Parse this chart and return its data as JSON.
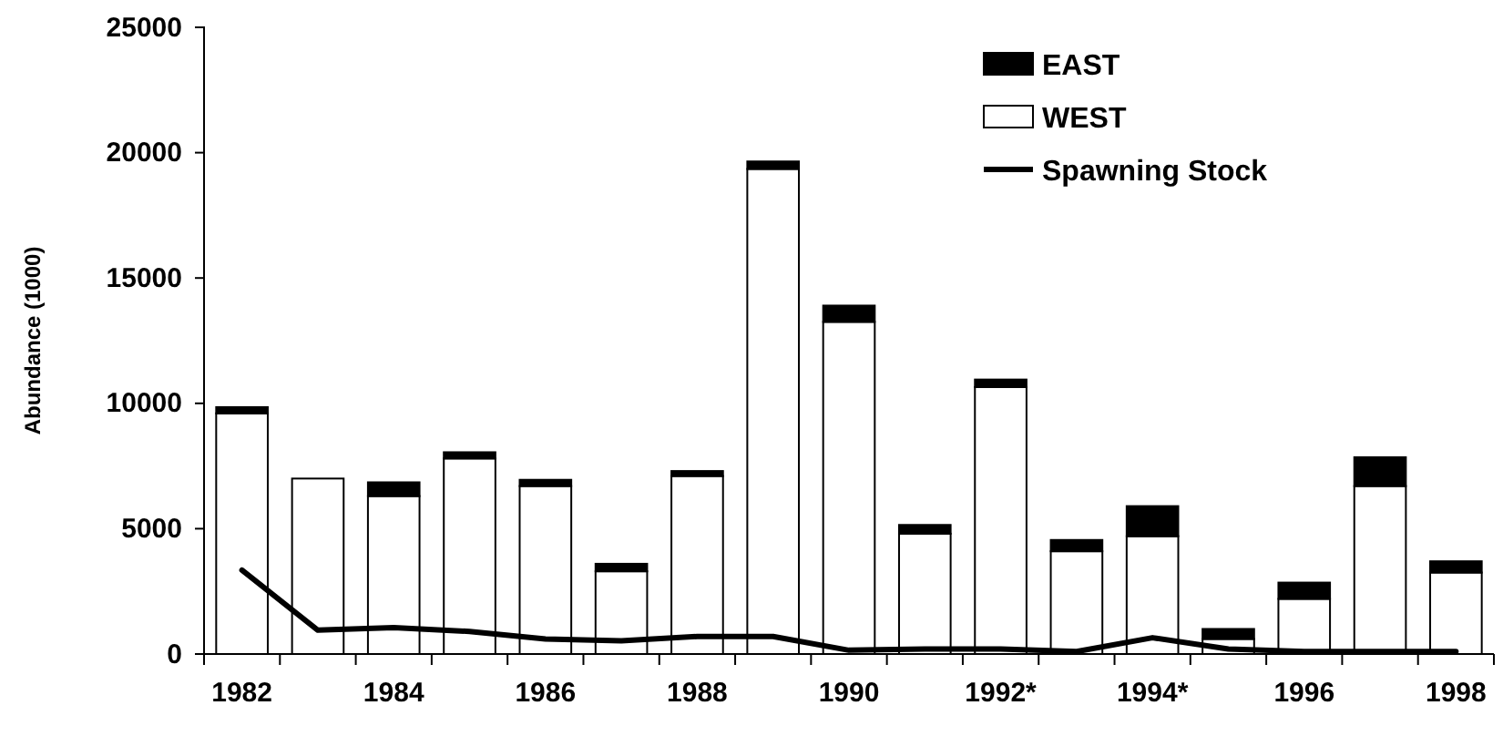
{
  "chart_data": {
    "type": "bar",
    "stacked": true,
    "ylabel": "Abundance (1000)",
    "categories": [
      "1982",
      null,
      "1984",
      null,
      "1986",
      null,
      "1988",
      null,
      "1990",
      null,
      "1992*",
      null,
      "1994*",
      null,
      "1996",
      null,
      "1998"
    ],
    "series": [
      {
        "name": "WEST",
        "color": "#ffffff",
        "values": [
          9600,
          7000,
          6300,
          7800,
          6700,
          3300,
          7100,
          19350,
          13250,
          4800,
          10650,
          4100,
          4700,
          600,
          2200,
          6700,
          3250
        ]
      },
      {
        "name": "EAST",
        "color": "#000000",
        "values": [
          250,
          0,
          550,
          250,
          250,
          300,
          200,
          300,
          650,
          350,
          300,
          450,
          1200,
          400,
          650,
          1150,
          450
        ]
      },
      {
        "name": "Spawning Stock",
        "type": "line",
        "color": "#000000",
        "values": [
          3350,
          950,
          1050,
          900,
          600,
          530,
          700,
          700,
          150,
          200,
          200,
          100,
          650,
          200,
          100,
          100,
          100
        ]
      }
    ],
    "ylim": [
      0,
      25000
    ],
    "yticks": [
      0,
      5000,
      10000,
      15000,
      20000,
      25000
    ],
    "grid": false,
    "legend": "top right"
  }
}
